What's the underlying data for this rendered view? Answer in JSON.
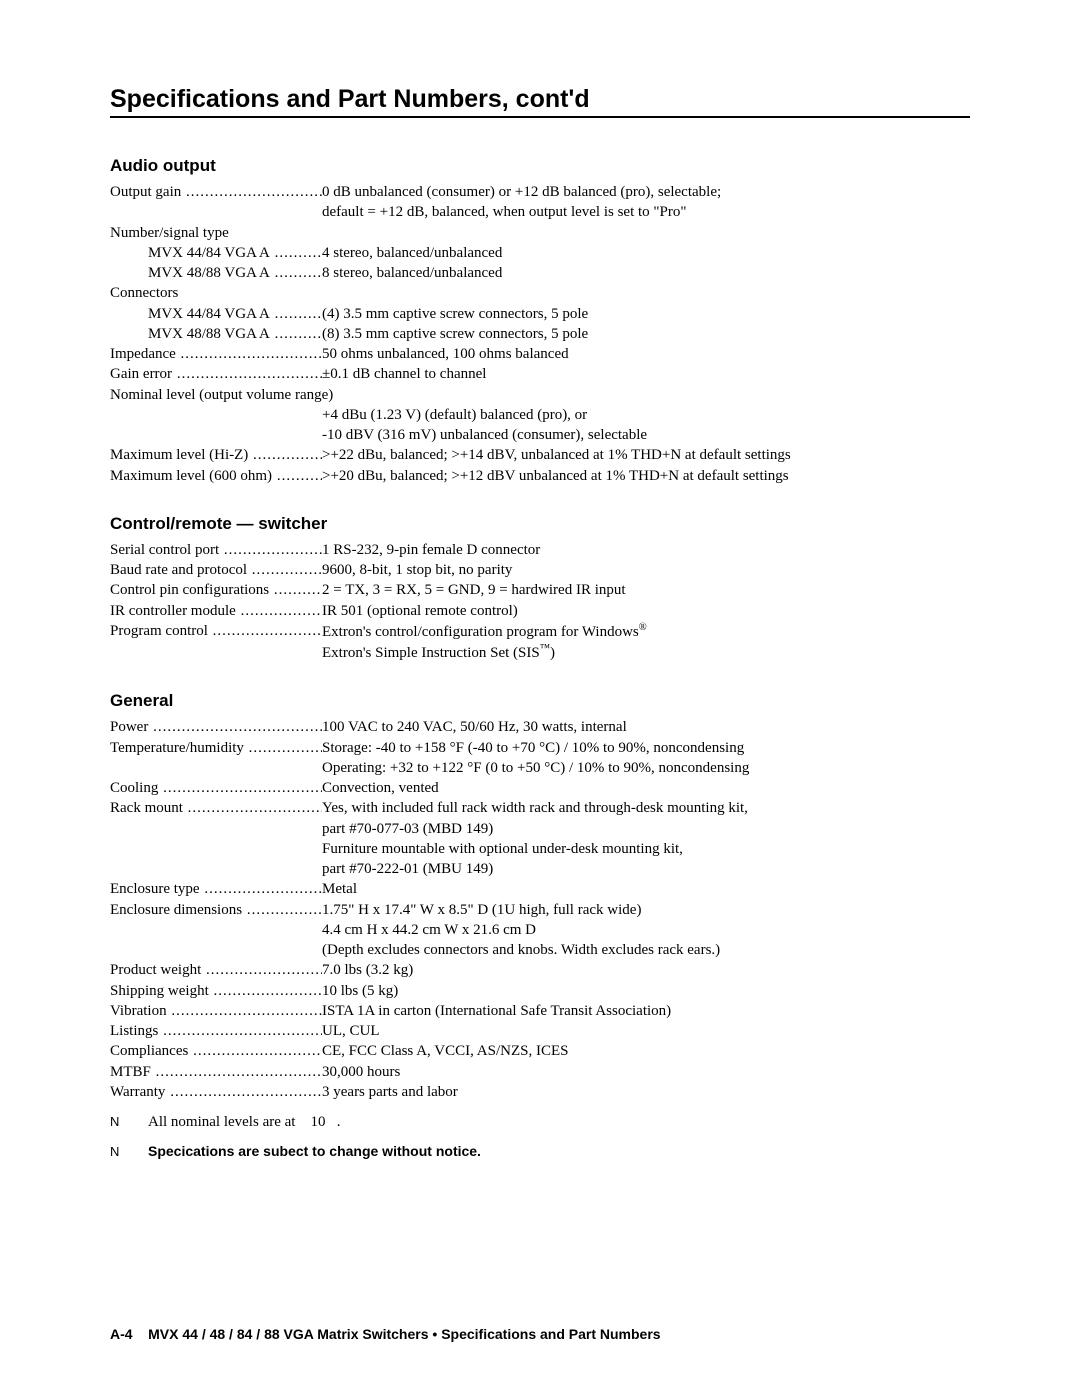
{
  "title": "Specifications and Part Numbers, cont'd",
  "sections": {
    "audio": {
      "heading": "Audio output",
      "output_gain_label": "Output gain",
      "output_gain_val": "0 dB unbalanced (consumer) or +12 dB balanced (pro), selectable;",
      "output_gain_val2": "default = +12 dB, balanced, when output level is set to \"Pro\"",
      "num_signal_label": "Number/signal type",
      "m4484_label": "MVX 44/84 VGA A",
      "m4484_num_val": "4 stereo, balanced/unbalanced",
      "m4888_label": "MVX 48/88 VGA A",
      "m4888_num_val": "8 stereo, balanced/unbalanced",
      "connectors_label": "Connectors",
      "m4484_conn_val": "(4) 3.5 mm captive screw connectors, 5 pole",
      "m4888_conn_val": "(8) 3.5 mm captive screw connectors, 5 pole",
      "impedance_label": "Impedance",
      "impedance_val": "50 ohms unbalanced,  100 ohms balanced",
      "gain_error_label": "Gain error",
      "gain_error_val": "±0.1 dB channel to channel",
      "nominal_label": "Nominal level (output volume range)",
      "nominal_val1": "+4 dBu (1.23 V) (default) balanced (pro), or",
      "nominal_val2": "-10 dBV (316 mV) unbalanced (consumer), selectable",
      "maxhi_label": "Maximum level (Hi-Z)",
      "maxhi_val": ">+22 dBu, balanced; >+14 dBV, unbalanced at 1% THD+N at default settings",
      "max600_label": "Maximum level (600 ohm)",
      "max600_val": ">+20 dBu, balanced; >+12 dBV unbalanced at 1% THD+N at default settings"
    },
    "control": {
      "heading": "Control/remote — switcher",
      "serial_label": "Serial control port",
      "serial_val": "1 RS-232, 9-pin female D connector",
      "baud_label": "Baud rate and protocol",
      "baud_val": "9600, 8-bit, 1 stop bit, no parity",
      "pins_label": "Control pin configurations",
      "pins_val": "2 = TX, 3 = RX, 5 = GND, 9 = hardwired IR input",
      "ir_label": "IR controller module",
      "ir_val": "IR 501 (optional remote control)",
      "prog_label": "Program control",
      "prog_val1a": "Extron's control/configuration program for Windows",
      "prog_val1b": "®",
      "prog_val2a": "Extron's Simple Instruction Set (SIS",
      "prog_val2b": "™",
      "prog_val2c": ")"
    },
    "general": {
      "heading": "General",
      "power_label": "Power",
      "power_val": "100 VAC to 240 VAC, 50/60 Hz, 30 watts, internal",
      "temp_label": "Temperature/humidity",
      "temp_val1": "Storage: -40 to +158 °F (-40 to +70 °C) / 10% to 90%, noncondensing",
      "temp_val2": "Operating: +32 to +122 °F (0 to +50 °C) / 10% to 90%, noncondensing",
      "cooling_label": "Cooling",
      "cooling_val": "Convection, vented",
      "rack_label": "Rack mount",
      "rack_val1": "Yes, with included full rack width rack and through-desk mounting kit,",
      "rack_val2": "part #70-077-03 (MBD 149)",
      "rack_val3": "Furniture mountable with optional under-desk mounting kit,",
      "rack_val4": "part #70-222-01 (MBU 149)",
      "enc_type_label": "Enclosure type",
      "enc_type_val": "Metal",
      "enc_dim_label": "Enclosure dimensions",
      "enc_dim_val1": "1.75\" H x 17.4\" W x 8.5\" D (1U high, full rack wide)",
      "enc_dim_val2": "4.4 cm H x 44.2 cm W x 21.6 cm D",
      "enc_dim_val3": "(Depth excludes connectors and knobs.  Width excludes rack ears.)",
      "prod_wt_label": "Product weight",
      "prod_wt_val": "7.0 lbs (3.2 kg)",
      "ship_wt_label": "Shipping weight",
      "ship_wt_val": "10 lbs (5 kg)",
      "vib_label": "Vibration",
      "vib_val": "ISTA 1A in carton (International Safe Transit Association)",
      "list_label": "Listings",
      "list_val": "UL, CUL",
      "comp_label": "Compliances",
      "comp_val": "CE, FCC Class A, VCCI, AS/NZS, ICES",
      "mtbf_label": "MTBF",
      "mtbf_val": "30,000 hours",
      "warr_label": "Warranty",
      "warr_val": "3 years parts and labor"
    }
  },
  "notes": {
    "mark": "N",
    "note1a": "All nominal levels are at ",
    "note1b": "10",
    "note1c": ".",
    "note2": "Specications are subect to change without notice."
  },
  "footer": {
    "page_num": "A-4",
    "text": "MVX 44 / 48 / 84 / 88 VGA Matrix Switchers • Specifications and Part Numbers"
  }
}
